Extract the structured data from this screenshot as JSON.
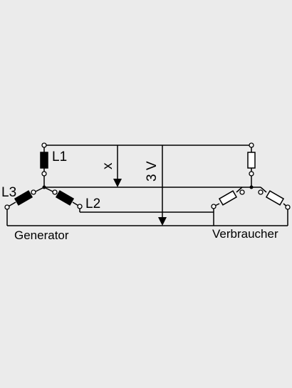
{
  "labels": {
    "l1": "L1",
    "l2": "L2",
    "l3": "L3",
    "x": "x",
    "voltage": "3 V",
    "generator": "Generator",
    "consumer": "Verbraucher"
  },
  "colors": {
    "background": "#ebebeb",
    "line": "#000000",
    "generator_winding": "#000000",
    "consumer_resistor": "#ffffff"
  }
}
